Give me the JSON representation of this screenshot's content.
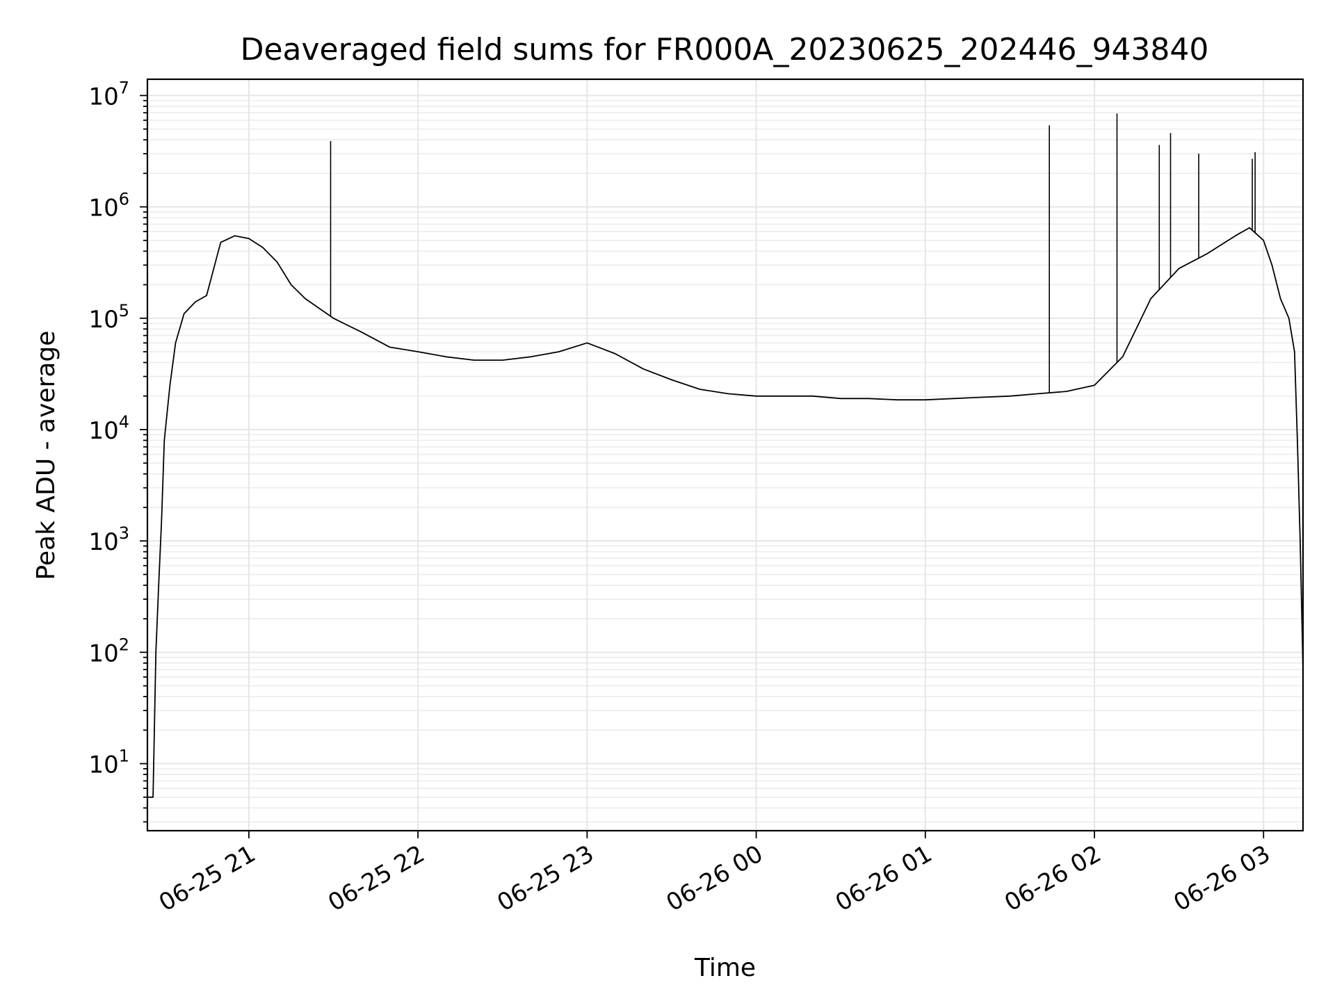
{
  "chart_data": {
    "type": "line",
    "title": "Deaveraged field sums for FR000A_20230625_202446_943840",
    "xlabel": "Time",
    "ylabel": "Peak ADU - average",
    "yscale": "log",
    "ylim": [
      2.5,
      14000000
    ],
    "xlim": [
      "2023-06-25 20:24",
      "2023-06-26 03:14"
    ],
    "grid": true,
    "x_ticks": [
      {
        "value": "2023-06-25 21:00",
        "label": "06-25 21"
      },
      {
        "value": "2023-06-25 22:00",
        "label": "06-25 22"
      },
      {
        "value": "2023-06-25 23:00",
        "label": "06-25 23"
      },
      {
        "value": "2023-06-26 00:00",
        "label": "06-26 00"
      },
      {
        "value": "2023-06-26 01:00",
        "label": "06-26 01"
      },
      {
        "value": "2023-06-26 02:00",
        "label": "06-26 02"
      },
      {
        "value": "2023-06-26 03:00",
        "label": "06-26 03"
      }
    ],
    "y_ticks": [
      {
        "value": 10,
        "base": "10",
        "exp": "1"
      },
      {
        "value": 100,
        "base": "10",
        "exp": "2"
      },
      {
        "value": 1000,
        "base": "10",
        "exp": "3"
      },
      {
        "value": 10000,
        "base": "10",
        "exp": "4"
      },
      {
        "value": 100000,
        "base": "10",
        "exp": "5"
      },
      {
        "value": 1000000,
        "base": "10",
        "exp": "6"
      },
      {
        "value": 10000000,
        "base": "10",
        "exp": "7"
      }
    ],
    "series": [
      {
        "color": "#000000",
        "x": [
          "2023-06-25 20:24",
          "2023-06-25 20:26",
          "2023-06-25 20:27",
          "2023-06-25 20:28",
          "2023-06-25 20:29",
          "2023-06-25 20:30",
          "2023-06-25 20:32",
          "2023-06-25 20:34",
          "2023-06-25 20:37",
          "2023-06-25 20:41",
          "2023-06-25 20:45",
          "2023-06-25 20:50",
          "2023-06-25 20:55",
          "2023-06-25 21:00",
          "2023-06-25 21:05",
          "2023-06-25 21:10",
          "2023-06-25 21:15",
          "2023-06-25 21:20",
          "2023-06-25 21:30",
          "2023-06-25 21:40",
          "2023-06-25 21:50",
          "2023-06-25 22:00",
          "2023-06-25 22:10",
          "2023-06-25 22:20",
          "2023-06-25 22:30",
          "2023-06-25 22:40",
          "2023-06-25 22:50",
          "2023-06-25 23:00",
          "2023-06-25 23:10",
          "2023-06-25 23:20",
          "2023-06-25 23:30",
          "2023-06-25 23:40",
          "2023-06-25 23:50",
          "2023-06-26 00:00",
          "2023-06-26 00:10",
          "2023-06-26 00:20",
          "2023-06-26 00:30",
          "2023-06-26 00:40",
          "2023-06-26 00:50",
          "2023-06-26 01:00",
          "2023-06-26 01:10",
          "2023-06-26 01:20",
          "2023-06-26 01:30",
          "2023-06-26 01:40",
          "2023-06-26 01:50",
          "2023-06-26 02:00",
          "2023-06-26 02:10",
          "2023-06-26 02:20",
          "2023-06-26 02:30",
          "2023-06-26 02:40",
          "2023-06-26 02:50",
          "2023-06-26 02:55",
          "2023-06-26 03:00",
          "2023-06-26 03:03",
          "2023-06-26 03:06",
          "2023-06-26 03:09",
          "2023-06-26 03:11",
          "2023-06-26 03:12",
          "2023-06-26 03:13",
          "2023-06-26 03:14"
        ],
        "y": [
          5,
          5,
          100,
          400,
          1500,
          8000,
          25000,
          60000,
          110000,
          140000,
          160000,
          480000,
          550000,
          520000,
          430000,
          320000,
          200000,
          150000,
          100000,
          75000,
          55000,
          50000,
          45000,
          42000,
          42000,
          45000,
          50000,
          60000,
          48000,
          35000,
          28000,
          23000,
          21000,
          20000,
          20000,
          20000,
          19000,
          19000,
          18500,
          18500,
          19000,
          19500,
          20000,
          21000,
          22000,
          25000,
          45000,
          150000,
          280000,
          380000,
          550000,
          650000,
          500000,
          300000,
          150000,
          100000,
          50000,
          8000,
          1000,
          70
        ]
      }
    ],
    "spikes": [
      {
        "x": "2023-06-25 21:29",
        "y": 3900000
      },
      {
        "x": "2023-06-26 01:44",
        "y": 5400000
      },
      {
        "x": "2023-06-26 02:08",
        "y": 6900000
      },
      {
        "x": "2023-06-26 02:23",
        "y": 3600000
      },
      {
        "x": "2023-06-26 02:27",
        "y": 4600000
      },
      {
        "x": "2023-06-26 02:37",
        "y": 3000000
      },
      {
        "x": "2023-06-26 02:56",
        "y": 2700000
      },
      {
        "x": "2023-06-26 02:57",
        "y": 3100000
      }
    ]
  }
}
